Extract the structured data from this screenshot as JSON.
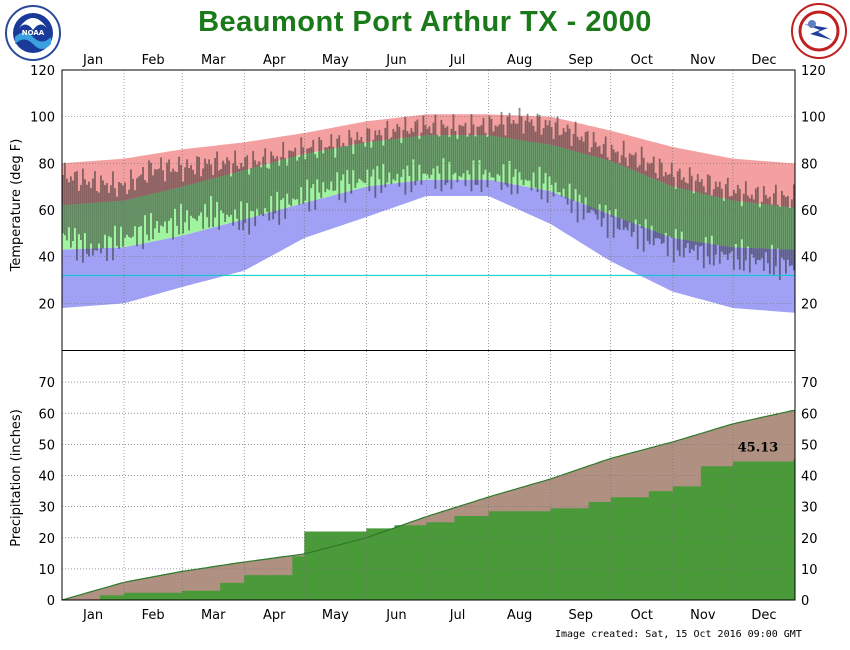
{
  "title": "Beaumont Port Arthur TX - 2000",
  "footer": "Image created: Sat, 15 Oct 2016 09:00 GMT",
  "logos": {
    "left": "noaa-logo",
    "right": "national-weather-service-logo",
    "left_text": "NOAA"
  },
  "colors": {
    "record_high": "#f4a0a0",
    "normal_range": "#a0f4a0",
    "record_low": "#a0a0f4",
    "actual": "#2a2a2a",
    "precip_normal": "#b09080",
    "precip_actual": "#4a9a3a",
    "title": "#1a7a1a",
    "freeze_line": "#00cccc"
  },
  "chart_data": [
    {
      "type": "area",
      "panel": "temperature",
      "ylabel": "Temperature (deg F)",
      "xlabel": "",
      "months": [
        "Jan",
        "Feb",
        "Mar",
        "Apr",
        "May",
        "Jun",
        "Jul",
        "Aug",
        "Sep",
        "Oct",
        "Nov",
        "Dec"
      ],
      "ylim": [
        0,
        120
      ],
      "yticks": [
        20,
        40,
        60,
        80,
        100,
        120
      ],
      "grid": true,
      "freeze_line": 32,
      "series": [
        {
          "x": [
            "Jan 1",
            "Feb 1",
            "Mar 1",
            "Apr 1",
            "May 1",
            "Jun 1",
            "Jul 1",
            "Aug 1",
            "Sep 1",
            "Oct 1",
            "Nov 1",
            "Dec 1",
            "Dec 31"
          ],
          "values": [
            80,
            82,
            86,
            89,
            93,
            98,
            101,
            101,
            100,
            94,
            87,
            82,
            80
          ]
        },
        {
          "x": [
            "Jan 1",
            "Feb 1",
            "Mar 1",
            "Apr 1",
            "May 1",
            "Jun 1",
            "Jul 1",
            "Aug 1",
            "Sep 1",
            "Oct 1",
            "Nov 1",
            "Dec 1",
            "Dec 31"
          ],
          "values": [
            62,
            64,
            70,
            77,
            84,
            89,
            92,
            92,
            88,
            81,
            70,
            64,
            61
          ]
        },
        {
          "x": [
            "Jan 1",
            "Feb 1",
            "Mar 1",
            "Apr 1",
            "May 1",
            "Jun 1",
            "Jul 1",
            "Aug 1",
            "Sep 1",
            "Oct 1",
            "Nov 1",
            "Dec 1",
            "Dec 31"
          ],
          "values": [
            43,
            44,
            49,
            56,
            63,
            70,
            73,
            73,
            68,
            58,
            48,
            44,
            43
          ]
        },
        {
          "x": [
            "Jan 1",
            "Feb 1",
            "Mar 1",
            "Apr 1",
            "May 1",
            "Jun 1",
            "Jul 1",
            "Aug 1",
            "Sep 1",
            "Oct 1",
            "Nov 1",
            "Dec 1",
            "Dec 31"
          ],
          "values": [
            18,
            20,
            27,
            34,
            48,
            57,
            66,
            66,
            54,
            38,
            25,
            18,
            16
          ]
        },
        {
          "x": [
            "Jan 1",
            "Jan 15",
            "Feb 1",
            "Feb 15",
            "Mar 1",
            "Mar 15",
            "Apr 1",
            "Apr 15",
            "May 1",
            "May 15",
            "Jun 1",
            "Jun 15",
            "Jul 1",
            "Jul 15",
            "Aug 1",
            "Aug 15",
            "Sep 1",
            "Sep 15",
            "Oct 1",
            "Oct 15",
            "Nov 1",
            "Nov 15",
            "Dec 1",
            "Dec 15",
            "Dec 31"
          ],
          "values": [
            75,
            72,
            70,
            78,
            78,
            80,
            80,
            82,
            86,
            88,
            91,
            94,
            96,
            95,
            96,
            99,
            96,
            92,
            85,
            82,
            75,
            72,
            68,
            66,
            65
          ]
        },
        {
          "x": [
            "Jan 1",
            "Jan 15",
            "Feb 1",
            "Feb 15",
            "Mar 1",
            "Mar 15",
            "Apr 1",
            "Apr 15",
            "May 1",
            "May 15",
            "Jun 1",
            "Jun 15",
            "Jul 1",
            "Jul 15",
            "Aug 1",
            "Aug 15",
            "Sep 1",
            "Sep 15",
            "Oct 1",
            "Oct 15",
            "Nov 1",
            "Nov 15",
            "Dec 1",
            "Dec 15",
            "Dec 31"
          ],
          "values": [
            50,
            42,
            48,
            52,
            55,
            58,
            56,
            60,
            66,
            70,
            73,
            73,
            75,
            74,
            74,
            73,
            70,
            62,
            55,
            50,
            45,
            42,
            40,
            38,
            36
          ]
        }
      ]
    },
    {
      "type": "area",
      "panel": "precipitation",
      "ylabel": "Precipitation (inches)",
      "xlabel": "",
      "months": [
        "Jan",
        "Feb",
        "Mar",
        "Apr",
        "May",
        "Jun",
        "Jul",
        "Aug",
        "Sep",
        "Oct",
        "Nov",
        "Dec"
      ],
      "ylim": [
        0,
        80
      ],
      "yticks": [
        0,
        10,
        20,
        30,
        40,
        50,
        60,
        70
      ],
      "grid": true,
      "annotation": "45.13",
      "series": [
        {
          "x": [
            "Jan 1",
            "Feb 1",
            "Mar 1",
            "Apr 1",
            "May 1",
            "Jun 1",
            "Jul 1",
            "Aug 1",
            "Sep 1",
            "Oct 1",
            "Nov 1",
            "Dec 1",
            "Dec 31"
          ],
          "values": [
            0,
            5.7,
            9.2,
            12.2,
            14.8,
            20.0,
            26.8,
            33.1,
            38.9,
            45.5,
            50.8,
            56.6,
            60.9
          ]
        },
        {
          "x": [
            "Jan 1",
            "Jan 20",
            "Feb 1",
            "Mar 1",
            "Mar 20",
            "Apr 1",
            "Apr 25",
            "May 1",
            "Jun 1",
            "Jun 15",
            "Jul 1",
            "Jul 15",
            "Aug 1",
            "Sep 1",
            "Sep 20",
            "Oct 1",
            "Oct 20",
            "Nov 1",
            "Nov 15",
            "Dec 1",
            "Dec 31"
          ],
          "values": [
            0,
            1.5,
            2.3,
            3.0,
            5.5,
            8.0,
            14.0,
            22.0,
            23.0,
            24.0,
            25.0,
            27.0,
            28.5,
            29.5,
            31.5,
            33.0,
            35.0,
            36.5,
            43.0,
            44.5,
            45.13
          ]
        }
      ]
    }
  ]
}
